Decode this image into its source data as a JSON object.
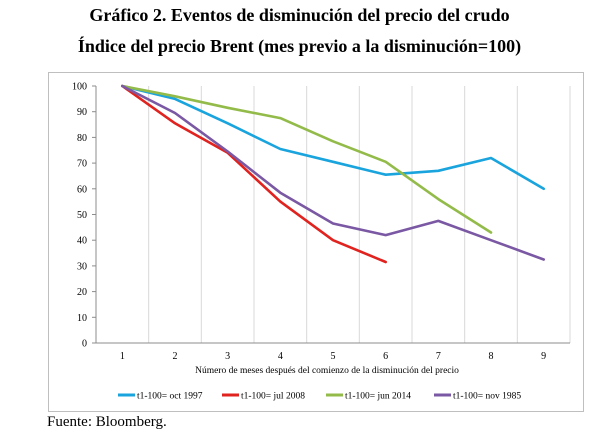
{
  "title": "Gráfico 2. Eventos de disminución del precio del crudo",
  "subtitle": "Índice del precio Brent (mes previo a la disminución=100)",
  "source": "Fuente: Bloomberg.",
  "chart_data": {
    "type": "line",
    "x": [
      1,
      2,
      3,
      4,
      5,
      6,
      7,
      8,
      9
    ],
    "xlabel": "Número de meses después del comienzo de la disminución del precio",
    "ylabel": "",
    "xlim": [
      1,
      9
    ],
    "ylim": [
      0,
      100
    ],
    "yticks": [
      0,
      10,
      20,
      30,
      40,
      50,
      60,
      70,
      80,
      90,
      100
    ],
    "grid": "vertical",
    "legend_position": "bottom",
    "series": [
      {
        "name": "t1-100= oct 1997",
        "color": "#1aa4dd",
        "values": [
          100,
          95,
          85.5,
          75.5,
          70.5,
          65.5,
          67,
          72,
          60
        ]
      },
      {
        "name": "t1-100= jul 2008",
        "color": "#e0231f",
        "values": [
          100,
          85.5,
          74,
          55,
          40,
          31.5,
          null,
          null,
          null
        ]
      },
      {
        "name": "t1-100= jun 2014",
        "color": "#93bb4a",
        "values": [
          100,
          96,
          91.5,
          87.5,
          78.5,
          70.5,
          56,
          43,
          null
        ]
      },
      {
        "name": "t1-100= nov 1985",
        "color": "#7a58a3",
        "values": [
          100,
          89.5,
          74.5,
          58.5,
          46.5,
          42,
          47.5,
          40,
          32.5
        ]
      }
    ]
  }
}
